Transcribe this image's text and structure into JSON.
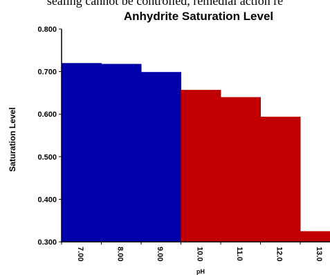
{
  "top_text": "sealing cannot be controlled, remedial action re",
  "chart_data": {
    "type": "bar",
    "title": "Anhydrite Saturation Level",
    "xlabel": "pH",
    "ylabel": "Saturation Level",
    "categories": [
      "7.00",
      "8.00",
      "9.00",
      "10.0",
      "11.0",
      "12.0",
      "13.0"
    ],
    "values": [
      0.72,
      0.718,
      0.699,
      0.657,
      0.64,
      0.594,
      0.325
    ],
    "bar_colors": [
      "#0000aa",
      "#0000aa",
      "#0000aa",
      "#c00000",
      "#c00000",
      "#c00000",
      "#c00000"
    ],
    "ylim": [
      0.3,
      0.8
    ],
    "yticks": [
      "0.300",
      "0.400",
      "0.500",
      "0.600",
      "0.700",
      "0.800"
    ],
    "grid": false,
    "legend": "none"
  }
}
